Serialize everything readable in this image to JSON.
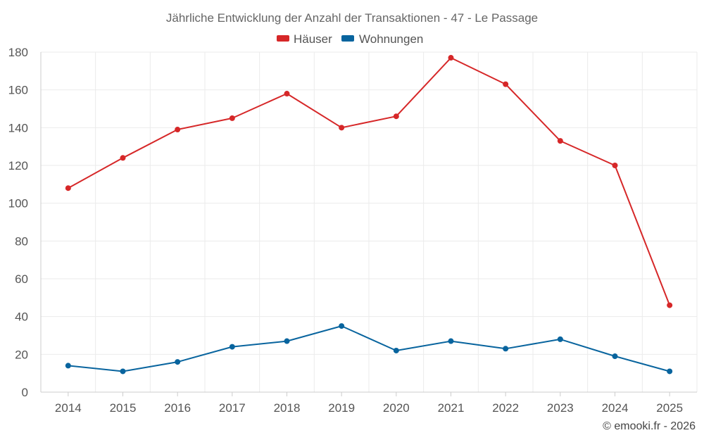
{
  "chart_data": {
    "type": "line",
    "title": "Jährliche Entwicklung der Anzahl der Transaktionen - 47 - Le Passage",
    "categories": [
      "2014",
      "2015",
      "2016",
      "2017",
      "2018",
      "2019",
      "2020",
      "2021",
      "2022",
      "2023",
      "2024",
      "2025"
    ],
    "series": [
      {
        "name": "Häuser",
        "color": "#d62728",
        "values": [
          108,
          124,
          139,
          145,
          158,
          140,
          146,
          177,
          163,
          133,
          120,
          46
        ]
      },
      {
        "name": "Wohnungen",
        "color": "#08649e",
        "values": [
          14,
          11,
          16,
          24,
          27,
          35,
          22,
          27,
          23,
          28,
          19,
          11
        ]
      }
    ],
    "ylim": [
      0,
      180
    ],
    "yticks": [
      "0",
      "20",
      "40",
      "60",
      "80",
      "100",
      "120",
      "140",
      "160",
      "180"
    ],
    "xlabel": "",
    "ylabel": "",
    "grid": true,
    "legend": "top-center"
  },
  "credit": "© emooki.fr - 2026"
}
